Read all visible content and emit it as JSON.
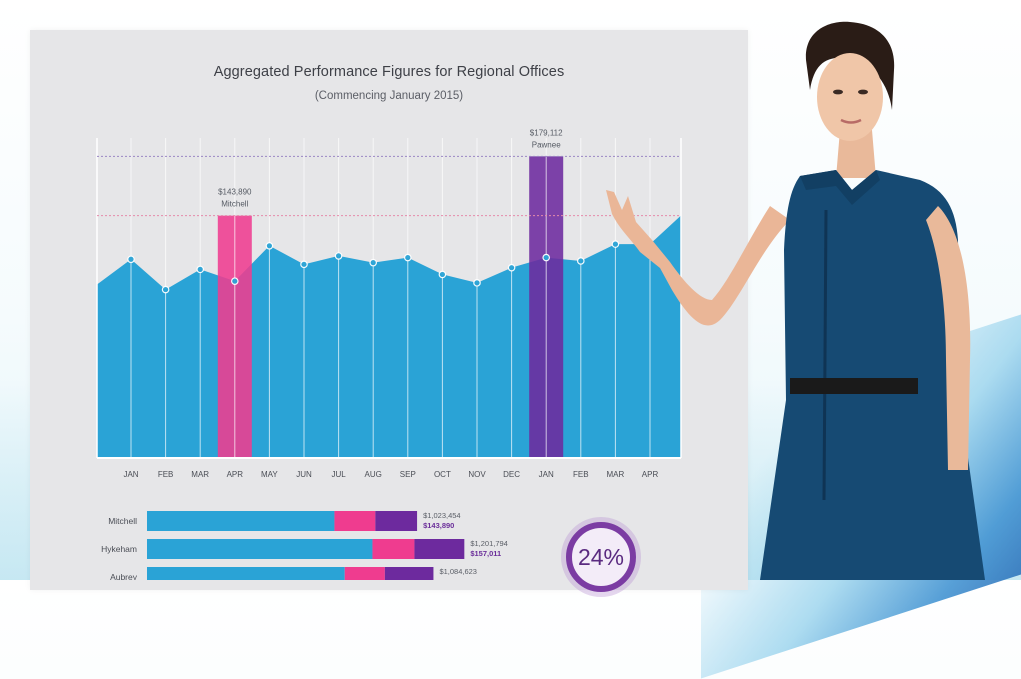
{
  "title": "Aggregated Performance Figures for Regional Offices",
  "subtitle": "(Commencing January 2015)",
  "colors": {
    "area": "#2aa3d6",
    "highlight_pink": "#ef3c8f",
    "highlight_purple": "#6d2a9e",
    "panel_bg": "#e6e6e8",
    "grid": "#ffffff",
    "ref_pink": "#e58aaa",
    "ref_purple": "#9a86c4",
    "value_purple": "#6b2f9a"
  },
  "chart_data": [
    {
      "type": "area",
      "title": "Aggregated Performance Figures for Regional Offices",
      "subtitle": "(Commencing January 2015)",
      "categories": [
        "JAN",
        "FEB",
        "MAR",
        "APR",
        "MAY",
        "JUN",
        "JUL",
        "AUG",
        "SEP",
        "OCT",
        "NOV",
        "DEC",
        "JAN",
        "FEB",
        "MAR",
        "APR"
      ],
      "series": [
        {
          "values": [
            118000,
            100000,
            112000,
            105000,
            126000,
            115000,
            120000,
            116000,
            119000,
            109000,
            104000,
            113000,
            119000,
            117000,
            127000,
            127000
          ],
          "start_value": 103000,
          "end_value": 144000
        }
      ],
      "ylim": [
        0,
        190000
      ],
      "grid": true,
      "highlights": [
        {
          "category_index": 3,
          "label": "APR",
          "value": 143890,
          "value_label": "$143,890",
          "name": "Mitchell",
          "color": "#ef3c8f"
        },
        {
          "category_index": 12,
          "label": "JAN",
          "value": 179112,
          "value_label": "$179,112",
          "name": "Pawnee",
          "color": "#6d2a9e"
        }
      ]
    },
    {
      "type": "bar",
      "stacked": true,
      "orientation": "horizontal",
      "categories": [
        "Mitchell",
        "Hykeham",
        "Aubrey"
      ],
      "series": [
        {
          "color": "#2aa3d6",
          "values": [
            710000,
            854000,
            749000
          ]
        },
        {
          "color": "#ef3c8f",
          "values": [
            155000,
            159000,
            152000
          ]
        },
        {
          "color": "#6d2a9e",
          "values": [
            158000,
            189000,
            184000
          ]
        }
      ],
      "totals": [
        "$1,023,454",
        "$1,201,794",
        "$1,084,623"
      ],
      "values": [
        "$143,890",
        "$157,011",
        ""
      ],
      "xlim": [
        0,
        1250000
      ]
    }
  ],
  "badge": {
    "value": "24%"
  }
}
